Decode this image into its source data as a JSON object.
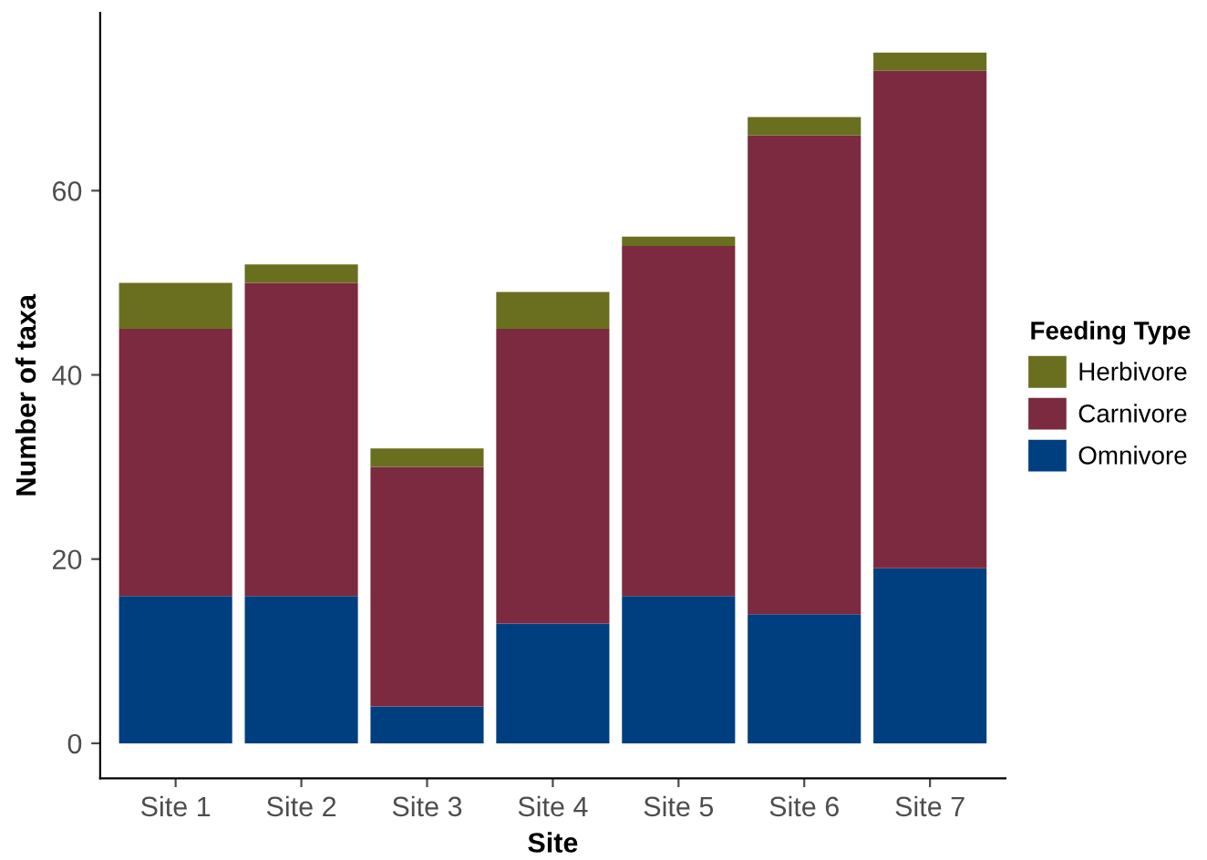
{
  "chart_data": {
    "type": "bar",
    "stacked": true,
    "xlabel": "Site",
    "ylabel": "Number of taxa",
    "legend_title": "Feeding Type",
    "legend": "right",
    "categories": [
      "Site 1",
      "Site 2",
      "Site 3",
      "Site 4",
      "Site 5",
      "Site 6",
      "Site 7"
    ],
    "series": [
      {
        "name": "Omnivore",
        "color": "#003f7f",
        "values": [
          16,
          16,
          4,
          13,
          16,
          14,
          19
        ]
      },
      {
        "name": "Carnivore",
        "color": "#7b2a3f",
        "values": [
          29,
          34,
          26,
          32,
          38,
          52,
          54
        ]
      },
      {
        "name": "Herbivore",
        "color": "#6a6e1f",
        "values": [
          5,
          2,
          2,
          4,
          1,
          2,
          2
        ]
      }
    ],
    "ylim": [
      -3.8,
      79.3
    ],
    "yticks": [
      0,
      20,
      40,
      60
    ],
    "grid": false
  }
}
